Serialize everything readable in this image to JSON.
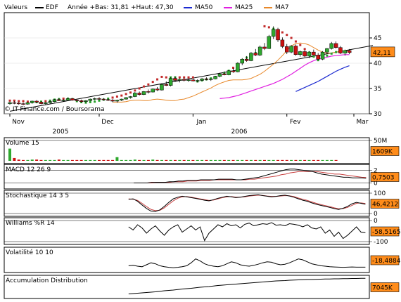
{
  "header": {
    "valeurs": "Valeurs",
    "symbol": "EDF",
    "stats": "Année +Bas: 31,81 +Haut: 47,30",
    "ma50": "MA50",
    "ma25": "MA25",
    "ma7": "MA7"
  },
  "colors": {
    "up": "#2ea82e",
    "down": "#cc1111",
    "ma50": "#1c2ad0",
    "ma25": "#e020e0",
    "ma7": "#e8882a",
    "sar_up": "#27a12a",
    "sar_down": "#c22a2a",
    "trend": "#000000",
    "value_box": "#ff8c1a",
    "macd_signal": "#c84040",
    "grid": "#d9d9d9"
  },
  "copyright": "© IT-Finance.com / Boursorama",
  "chart_data": {
    "type": "candlestick",
    "title": "EDF",
    "price_axis": {
      "ticks": [
        "30",
        "35",
        "40",
        "45"
      ],
      "range": [
        30,
        50
      ]
    },
    "current_value": "42,11",
    "month_labels": [
      "Nov",
      "Dec",
      "Jan",
      "Fev",
      "Mar"
    ],
    "year_labels": [
      "2005",
      "2006"
    ],
    "candles": [
      {
        "o": 32.0,
        "h": 32.4,
        "l": 31.8,
        "c": 32.2
      },
      {
        "o": 32.2,
        "h": 32.5,
        "l": 31.9,
        "c": 32.1
      },
      {
        "o": 32.1,
        "h": 32.3,
        "l": 31.8,
        "c": 32.0
      },
      {
        "o": 32.0,
        "h": 32.2,
        "l": 31.7,
        "c": 31.9
      },
      {
        "o": 31.9,
        "h": 32.3,
        "l": 31.8,
        "c": 32.2
      },
      {
        "o": 32.2,
        "h": 32.6,
        "l": 32.0,
        "c": 32.5
      },
      {
        "o": 32.5,
        "h": 32.7,
        "l": 32.1,
        "c": 32.3
      },
      {
        "o": 32.3,
        "h": 32.5,
        "l": 31.9,
        "c": 32.0
      },
      {
        "o": 32.0,
        "h": 32.3,
        "l": 31.8,
        "c": 32.2
      },
      {
        "o": 32.2,
        "h": 32.6,
        "l": 32.0,
        "c": 32.4
      },
      {
        "o": 32.4,
        "h": 32.9,
        "l": 32.3,
        "c": 32.8
      },
      {
        "o": 32.8,
        "h": 33.1,
        "l": 32.5,
        "c": 32.6
      },
      {
        "o": 32.6,
        "h": 32.9,
        "l": 32.4,
        "c": 32.7
      },
      {
        "o": 32.7,
        "h": 33.2,
        "l": 32.6,
        "c": 33.0
      },
      {
        "o": 33.0,
        "h": 33.1,
        "l": 32.6,
        "c": 32.7
      },
      {
        "o": 32.7,
        "h": 32.9,
        "l": 32.4,
        "c": 32.6
      },
      {
        "o": 32.6,
        "h": 32.8,
        "l": 32.2,
        "c": 32.4
      },
      {
        "o": 32.4,
        "h": 32.7,
        "l": 32.2,
        "c": 32.6
      },
      {
        "o": 32.6,
        "h": 33.0,
        "l": 32.5,
        "c": 32.9
      },
      {
        "o": 32.9,
        "h": 33.2,
        "l": 32.7,
        "c": 33.0
      },
      {
        "o": 33.0,
        "h": 33.3,
        "l": 32.8,
        "c": 32.9
      },
      {
        "o": 32.9,
        "h": 33.1,
        "l": 32.6,
        "c": 32.8
      },
      {
        "o": 32.8,
        "h": 33.0,
        "l": 32.5,
        "c": 32.7
      },
      {
        "o": 32.7,
        "h": 32.9,
        "l": 32.3,
        "c": 32.5
      },
      {
        "o": 32.5,
        "h": 32.8,
        "l": 32.2,
        "c": 32.7
      },
      {
        "o": 32.7,
        "h": 33.0,
        "l": 32.5,
        "c": 32.9
      },
      {
        "o": 32.9,
        "h": 33.3,
        "l": 32.8,
        "c": 33.2
      },
      {
        "o": 33.2,
        "h": 33.5,
        "l": 33.0,
        "c": 33.4
      },
      {
        "o": 33.4,
        "h": 34.3,
        "l": 33.3,
        "c": 34.1
      },
      {
        "o": 34.1,
        "h": 34.4,
        "l": 33.6,
        "c": 33.8
      },
      {
        "o": 33.8,
        "h": 34.5,
        "l": 33.7,
        "c": 34.4
      },
      {
        "o": 34.4,
        "h": 34.8,
        "l": 34.0,
        "c": 34.3
      },
      {
        "o": 34.3,
        "h": 35.0,
        "l": 34.2,
        "c": 34.9
      },
      {
        "o": 34.9,
        "h": 35.3,
        "l": 34.5,
        "c": 34.7
      },
      {
        "o": 34.7,
        "h": 36.0,
        "l": 34.6,
        "c": 35.8
      },
      {
        "o": 35.8,
        "h": 36.4,
        "l": 35.5,
        "c": 35.6
      },
      {
        "o": 35.6,
        "h": 37.2,
        "l": 35.4,
        "c": 37.0
      },
      {
        "o": 37.0,
        "h": 37.4,
        "l": 36.3,
        "c": 36.6
      },
      {
        "o": 36.6,
        "h": 37.0,
        "l": 36.2,
        "c": 36.8
      },
      {
        "o": 36.8,
        "h": 37.1,
        "l": 36.4,
        "c": 36.6
      },
      {
        "o": 36.6,
        "h": 36.9,
        "l": 36.3,
        "c": 36.7
      },
      {
        "o": 36.7,
        "h": 37.0,
        "l": 36.4,
        "c": 36.5
      },
      {
        "o": 36.5,
        "h": 36.8,
        "l": 36.2,
        "c": 36.6
      },
      {
        "o": 36.6,
        "h": 37.1,
        "l": 36.5,
        "c": 36.9
      },
      {
        "o": 36.9,
        "h": 37.2,
        "l": 36.6,
        "c": 36.8
      },
      {
        "o": 36.8,
        "h": 37.0,
        "l": 36.5,
        "c": 36.9
      },
      {
        "o": 36.9,
        "h": 37.5,
        "l": 36.8,
        "c": 37.4
      },
      {
        "o": 37.4,
        "h": 38.1,
        "l": 37.2,
        "c": 37.9
      },
      {
        "o": 37.9,
        "h": 38.4,
        "l": 37.6,
        "c": 37.7
      },
      {
        "o": 37.7,
        "h": 38.6,
        "l": 37.6,
        "c": 38.5
      },
      {
        "o": 38.5,
        "h": 39.0,
        "l": 38.1,
        "c": 38.3
      },
      {
        "o": 38.3,
        "h": 40.2,
        "l": 38.2,
        "c": 40.0
      },
      {
        "o": 40.0,
        "h": 41.0,
        "l": 39.6,
        "c": 40.8
      },
      {
        "o": 40.8,
        "h": 41.4,
        "l": 40.3,
        "c": 40.5
      },
      {
        "o": 40.5,
        "h": 42.2,
        "l": 40.4,
        "c": 42.0
      },
      {
        "o": 42.0,
        "h": 42.8,
        "l": 41.4,
        "c": 41.6
      },
      {
        "o": 41.6,
        "h": 43.5,
        "l": 41.4,
        "c": 43.2
      },
      {
        "o": 43.2,
        "h": 44.0,
        "l": 42.6,
        "c": 42.9
      },
      {
        "o": 42.9,
        "h": 45.6,
        "l": 42.8,
        "c": 45.3
      },
      {
        "o": 45.3,
        "h": 47.3,
        "l": 44.8,
        "c": 46.7
      },
      {
        "o": 46.7,
        "h": 47.0,
        "l": 44.2,
        "c": 44.6
      },
      {
        "o": 44.6,
        "h": 45.1,
        "l": 43.0,
        "c": 43.3
      },
      {
        "o": 43.3,
        "h": 43.8,
        "l": 41.8,
        "c": 42.2
      },
      {
        "o": 42.2,
        "h": 43.6,
        "l": 42.0,
        "c": 43.4
      },
      {
        "o": 43.4,
        "h": 43.7,
        "l": 41.5,
        "c": 41.7
      },
      {
        "o": 41.7,
        "h": 42.5,
        "l": 41.3,
        "c": 42.3
      },
      {
        "o": 42.3,
        "h": 42.6,
        "l": 41.2,
        "c": 41.4
      },
      {
        "o": 41.4,
        "h": 42.4,
        "l": 41.0,
        "c": 42.2
      },
      {
        "o": 42.2,
        "h": 42.7,
        "l": 41.5,
        "c": 41.6
      },
      {
        "o": 41.6,
        "h": 42.0,
        "l": 40.6,
        "c": 40.8
      },
      {
        "o": 40.8,
        "h": 42.4,
        "l": 40.6,
        "c": 42.2
      },
      {
        "o": 42.2,
        "h": 43.0,
        "l": 41.8,
        "c": 42.9
      },
      {
        "o": 42.9,
        "h": 44.2,
        "l": 42.7,
        "c": 43.9
      },
      {
        "o": 43.9,
        "h": 44.3,
        "l": 42.9,
        "c": 43.1
      },
      {
        "o": 43.1,
        "h": 43.4,
        "l": 41.8,
        "c": 42.0
      },
      {
        "o": 42.0,
        "h": 42.7,
        "l": 41.5,
        "c": 42.5
      },
      {
        "o": 42.5,
        "h": 42.8,
        "l": 41.8,
        "c": 42.1
      }
    ],
    "ma7": [
      32.3,
      32.3,
      32.3,
      32.4,
      32.6,
      32.7,
      32.7,
      32.6,
      32.6,
      32.8,
      32.9,
      32.8,
      32.7,
      32.6,
      32.6,
      32.8,
      32.9,
      33.2,
      33.5,
      33.9,
      34.3,
      34.7,
      35.1,
      35.6,
      36.0,
      36.3,
      36.6,
      36.7,
      36.7,
      36.7,
      36.8,
      37.0,
      37.4,
      37.8,
      38.4,
      39.1,
      39.8,
      40.6,
      41.5,
      42.5,
      43.4,
      43.9,
      44.0,
      43.9,
      43.6,
      43.1,
      42.6,
      42.2,
      42.0,
      42.0,
      42.2,
      42.4,
      42.5,
      42.3
    ],
    "ma25": [
      33.0,
      33.1,
      33.2,
      33.4,
      33.6,
      33.9,
      34.2,
      34.5,
      34.8,
      35.1,
      35.4,
      35.7,
      36.0,
      36.4,
      36.8,
      37.3,
      37.8,
      38.4,
      39.0,
      39.6,
      40.1,
      40.5,
      40.8,
      41.0,
      41.2,
      41.4,
      41.5,
      41.6,
      41.7,
      41.7
    ],
    "ma50": [
      34.4,
      34.8,
      35.2,
      35.6,
      36.0,
      36.4,
      36.9,
      37.4,
      37.9,
      38.4,
      38.8,
      39.2,
      39.5
    ],
    "sar": [
      32.6,
      32.6,
      32.5,
      32.5,
      32.4,
      32.3,
      32.3,
      32.4,
      32.5,
      32.6,
      32.8,
      32.9,
      33.0,
      33.0,
      32.9,
      32.5,
      32.3,
      32.2,
      32.3,
      32.4,
      32.6,
      32.8,
      33.0,
      33.2,
      33.4,
      33.6,
      33.9,
      34.2,
      34.6,
      35.0,
      35.4,
      35.8,
      36.3,
      36.8,
      37.3,
      37.2,
      37.2,
      37.2,
      37.2,
      37.2,
      37.2,
      37.2,
      36.4,
      36.6,
      36.8,
      37.0,
      37.3,
      37.6,
      38.0,
      38.5,
      39.1,
      39.8,
      40.5,
      41.1,
      41.6,
      42.0,
      42.3,
      47.3,
      47.1,
      46.8,
      46.5,
      46.1,
      45.6,
      45.0,
      44.3,
      43.6,
      42.8,
      42.1,
      41.3,
      40.6,
      41.0,
      41.5,
      41.9,
      42.2
    ],
    "trendline": {
      "from": [
        0,
        30.5
      ],
      "to": [
        80,
        42.9
      ]
    },
    "indicators": [
      {
        "key": "volume",
        "label": "Volume 15",
        "ticks": [
          "50M"
        ],
        "value": "1609K",
        "range": [
          0,
          50
        ],
        "bars": [
          30,
          7,
          3,
          2,
          2,
          3,
          3,
          2,
          2,
          2,
          2,
          3,
          2,
          2,
          2,
          2,
          2,
          2,
          2,
          2,
          2,
          2,
          2,
          2,
          9,
          2,
          2,
          2,
          3,
          2,
          2,
          2,
          3,
          2,
          2,
          2,
          2,
          2,
          2,
          2,
          2,
          2,
          2,
          2,
          2,
          2,
          2,
          2,
          2,
          2,
          2,
          2,
          2,
          2,
          2,
          2,
          2,
          2,
          2,
          2,
          2,
          2,
          2,
          2,
          2,
          2,
          2,
          2,
          2,
          2,
          2,
          2,
          2,
          2
        ],
        "bar_colors": "updown"
      },
      {
        "key": "macd",
        "label": "MACD 12 26 9",
        "ticks": [
          "2",
          "0"
        ],
        "value": "0,7503",
        "range": [
          -0.5,
          2.5
        ],
        "line1": [
          0.0,
          0.0,
          0.0,
          0.0,
          0.1,
          0.1,
          0.1,
          0.1,
          0.2,
          0.2,
          0.3,
          0.3,
          0.4,
          0.4,
          0.4,
          0.5,
          0.5,
          0.5,
          0.5,
          0.6,
          0.6,
          0.6,
          0.6,
          0.5,
          0.5,
          0.6,
          0.7,
          0.8,
          0.9,
          1.1,
          1.3,
          1.5,
          1.7,
          1.9,
          2.1,
          2.2,
          2.2,
          2.1,
          2.0,
          1.9,
          1.8,
          1.6,
          1.4,
          1.3,
          1.2,
          1.1,
          1.0,
          0.9,
          0.9,
          0.8,
          0.8,
          0.8,
          0.75
        ],
        "line2": [
          0.0,
          0.0,
          0.0,
          0.0,
          0.0,
          0.1,
          0.1,
          0.1,
          0.1,
          0.2,
          0.2,
          0.2,
          0.3,
          0.3,
          0.3,
          0.4,
          0.4,
          0.4,
          0.5,
          0.5,
          0.5,
          0.5,
          0.5,
          0.5,
          0.5,
          0.5,
          0.6,
          0.6,
          0.7,
          0.8,
          0.9,
          1.0,
          1.1,
          1.3,
          1.4,
          1.6,
          1.7,
          1.8,
          1.8,
          1.8,
          1.8,
          1.8,
          1.7,
          1.6,
          1.5,
          1.4,
          1.4,
          1.3,
          1.2,
          1.1,
          1.0,
          0.9,
          0.85
        ]
      },
      {
        "key": "stoch",
        "label": "Stochastique 14 3 5",
        "ticks": [
          "100",
          "0"
        ],
        "value": "46,4212",
        "range": [
          0,
          100
        ],
        "line1": [
          70,
          72,
          60,
          42,
          25,
          12,
          10,
          18,
          35,
          55,
          72,
          80,
          85,
          82,
          78,
          74,
          70,
          65,
          62,
          68,
          75,
          80,
          85,
          82,
          78,
          80,
          84,
          88,
          90,
          92,
          88,
          85,
          82,
          84,
          88,
          90,
          86,
          80,
          72,
          65,
          60,
          52,
          45,
          40,
          35,
          30,
          24,
          20,
          26,
          35,
          48,
          55,
          50,
          46
        ],
        "line2": [
          72,
          70,
          64,
          50,
          34,
          20,
          14,
          16,
          28,
          45,
          62,
          75,
          82,
          83,
          80,
          76,
          72,
          68,
          64,
          66,
          72,
          78,
          82,
          83,
          80,
          80,
          82,
          86,
          88,
          90,
          89,
          86,
          84,
          84,
          86,
          88,
          87,
          83,
          76,
          70,
          64,
          57,
          50,
          44,
          39,
          34,
          28,
          23,
          24,
          30,
          40,
          50,
          52,
          49
        ]
      },
      {
        "key": "williams",
        "label": "Williams %R 14",
        "ticks": [
          "0",
          "-100"
        ],
        "value": "-58,5165",
        "range": [
          -100,
          0
        ],
        "line1": [
          -30,
          -45,
          -20,
          -35,
          -60,
          -40,
          -25,
          -50,
          -70,
          -45,
          -30,
          -20,
          -55,
          -40,
          -25,
          -45,
          -30,
          -95,
          -60,
          -40,
          -20,
          -30,
          -15,
          -25,
          -20,
          -35,
          -18,
          -12,
          -25,
          -20,
          -15,
          -18,
          -10,
          -22,
          -20,
          -25,
          -15,
          -18,
          -22,
          -30,
          -20,
          -35,
          -40,
          -30,
          -60,
          -45,
          -75,
          -55,
          -85,
          -70,
          -50,
          -30,
          -55,
          -58
        ]
      },
      {
        "key": "volatility",
        "label": "Volatilité 10 10",
        "ticks": [],
        "value": "-18,4884",
        "range": [
          0,
          100
        ],
        "line1": [
          20,
          22,
          18,
          15,
          25,
          35,
          30,
          20,
          15,
          12,
          10,
          12,
          15,
          20,
          35,
          55,
          45,
          30,
          22,
          18,
          15,
          20,
          30,
          40,
          35,
          25,
          20,
          18,
          22,
          28,
          35,
          40,
          38,
          30,
          25,
          28,
          35,
          45,
          55,
          50,
          40,
          30,
          25,
          20,
          18,
          15,
          14,
          13,
          12,
          13,
          14,
          13,
          13,
          13
        ]
      },
      {
        "key": "accdist",
        "label": "Accumulation Distribution",
        "ticks": [],
        "value": "7045K",
        "range": [
          0,
          100
        ],
        "line1": [
          10,
          12,
          14,
          16,
          18,
          20,
          22,
          25,
          28,
          30,
          32,
          35,
          38,
          40,
          42,
          45,
          48,
          50,
          52,
          55,
          58,
          60,
          62,
          64,
          66,
          68,
          70,
          72,
          74,
          76,
          78,
          80,
          82,
          84,
          85,
          86,
          88,
          89,
          90,
          91,
          92,
          92,
          93,
          94,
          95,
          95,
          96,
          96,
          97,
          97,
          98,
          98,
          99,
          99
        ]
      }
    ]
  }
}
